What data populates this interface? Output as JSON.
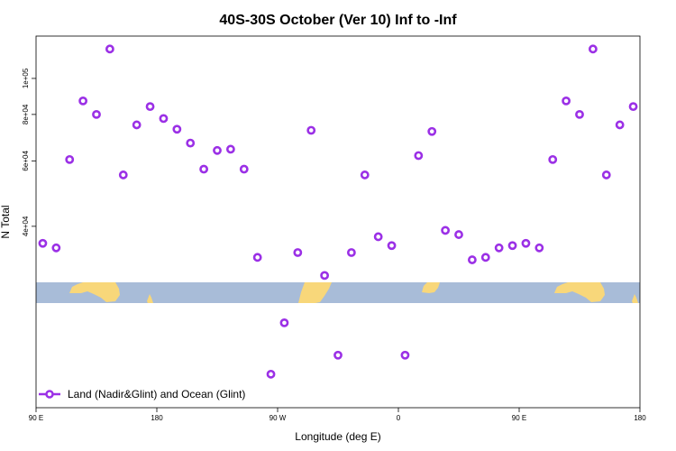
{
  "chart_data": {
    "type": "scatter",
    "title": "40S-30S October (Ver 10)   Inf to -Inf",
    "xlabel": "Longitude (deg E)",
    "ylabel": "N Total",
    "y_scale": "log",
    "xlim": [
      90,
      540
    ],
    "ylim": [
      13000,
      130000
    ],
    "x_ticks": [
      {
        "value": 90,
        "label": "90 E"
      },
      {
        "value": 180,
        "label": "180"
      },
      {
        "value": 270,
        "label": "90 W"
      },
      {
        "value": 360,
        "label": "0"
      },
      {
        "value": 450,
        "label": "90 E"
      },
      {
        "value": 540,
        "label": "180"
      }
    ],
    "y_ticks": [
      {
        "value": 40000,
        "label": "4e+04"
      },
      {
        "value": 60000,
        "label": "6e+04"
      },
      {
        "value": 80000,
        "label": "8e+04"
      },
      {
        "value": 100000,
        "label": "1e+05"
      }
    ],
    "series": [
      {
        "name": "Land (Nadir&Glint) and Ocean (Glint)",
        "color": "#9b30e6",
        "marker": "open-circle",
        "x": [
          95,
          105,
          115,
          125,
          135,
          145,
          155,
          165,
          175,
          185,
          195,
          205,
          215,
          225,
          235,
          245,
          255,
          265,
          275,
          285,
          295,
          305,
          315,
          325,
          335,
          345,
          355,
          365,
          375,
          385,
          395,
          405,
          415,
          425,
          435,
          445,
          455,
          465,
          475,
          485,
          495,
          505,
          515,
          525,
          535
        ],
        "y": [
          36000,
          35000,
          60500,
          87000,
          80000,
          120000,
          55000,
          75000,
          84000,
          78000,
          73000,
          67000,
          57000,
          64000,
          64500,
          57000,
          33000,
          16000,
          22000,
          34000,
          72500,
          29500,
          18000,
          34000,
          55000,
          37500,
          35500,
          18000,
          62000,
          72000,
          39000,
          38000,
          32500,
          33000,
          35000,
          35500,
          36000,
          35000,
          60500,
          87000,
          80000,
          120000,
          55000,
          75000,
          84000
        ]
      }
    ],
    "legend": {
      "position": "bottom-left",
      "label": "Land (Nadir&Glint) and Ocean (Glint)"
    },
    "grid": false,
    "map_band": {
      "ocean_color": "#a8bcd8",
      "land_color": "#f8d77a",
      "lat_range": "40S-30S"
    }
  }
}
